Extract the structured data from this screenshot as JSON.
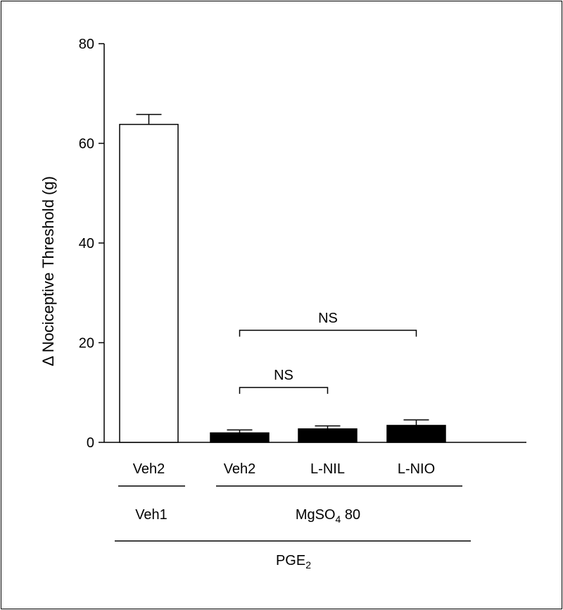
{
  "chart_data": {
    "type": "bar",
    "ylabel": "Δ Nociceptive Threshold (g)",
    "ylim": [
      0,
      80
    ],
    "yticks": [
      0,
      20,
      40,
      60,
      80
    ],
    "categories": [
      "Veh2",
      "Veh2",
      "L-NIL",
      "L-NIO"
    ],
    "values": [
      63.8,
      1.9,
      2.7,
      3.4
    ],
    "errors": [
      2.0,
      0.6,
      0.6,
      1.1
    ],
    "fills": [
      "#ffffff",
      "#000000",
      "#000000",
      "#000000"
    ],
    "significance": [
      {
        "from": 1,
        "to": 2,
        "label": "NS",
        "y": 11
      },
      {
        "from": 1,
        "to": 3,
        "label": "NS",
        "y": 22.5
      }
    ],
    "groups": [
      {
        "label": "Veh1",
        "from": 0,
        "to": 0
      },
      {
        "label_main": "MgSO",
        "label_sub": "4",
        "label_tail": " 80",
        "from": 1,
        "to": 3
      }
    ],
    "overall": {
      "label_main": "PGE",
      "label_sub": "2"
    }
  }
}
